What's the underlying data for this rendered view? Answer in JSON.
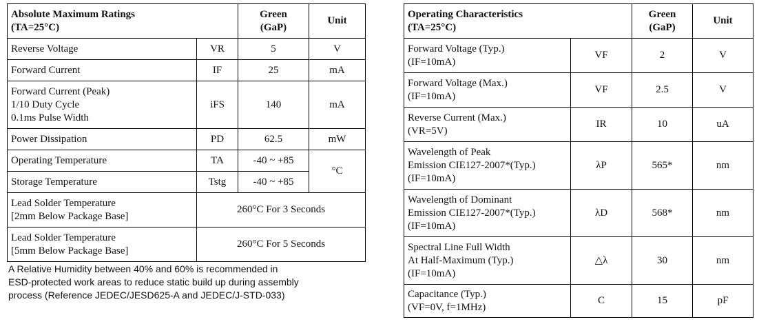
{
  "left_table": {
    "header": {
      "parameter": [
        "Absolute Maximum Ratings",
        "(TA=25°C)"
      ],
      "green": [
        "Green",
        "(GaP)"
      ],
      "unit": "Unit"
    },
    "rows": [
      {
        "parameter": [
          "Reverse Voltage"
        ],
        "symbol": "VR",
        "green": "5",
        "unit": "V"
      },
      {
        "parameter": [
          "Forward Current"
        ],
        "symbol": "IF",
        "green": "25",
        "unit": "mA"
      },
      {
        "parameter": [
          "Forward Current (Peak)",
          "1/10 Duty Cycle",
          "0.1ms Pulse Width"
        ],
        "symbol": "iFS",
        "green": "140",
        "unit": "mA"
      },
      {
        "parameter": [
          "Power Dissipation"
        ],
        "symbol": "PD",
        "green": "62.5",
        "unit": "mW"
      },
      {
        "parameter": [
          "Operating Temperature"
        ],
        "symbol": "TA",
        "green": "-40 ~ +85",
        "unit": "°C"
      },
      {
        "parameter": [
          "Storage Temperature"
        ],
        "symbol": "Tstg",
        "green": "-40 ~ +85"
      },
      {
        "parameter": [
          "Lead Solder Temperature",
          "[2mm Below Package Base]"
        ],
        "value": "260°C For 3 Seconds"
      },
      {
        "parameter": [
          "Lead Solder Temperature",
          "[5mm Below Package Base]"
        ],
        "value": "260°C For 5 Seconds"
      }
    ],
    "note": [
      "A Relative Humidity between 40% and 60% is recommended in",
      "ESD-protected work areas to reduce static build up during assembly",
      "process (Reference JEDEC/JESD625-A and JEDEC/J-STD-033)"
    ]
  },
  "right_table": {
    "header": {
      "parameter": [
        "Operating Characteristics",
        "(TA=25°C)"
      ],
      "green": [
        "Green",
        "(GaP)"
      ],
      "unit": "Unit"
    },
    "rows": [
      {
        "parameter": [
          "Forward Voltage (Typ.)",
          "(IF=10mA)"
        ],
        "symbol": "VF",
        "green": "2",
        "unit": "V"
      },
      {
        "parameter": [
          "Forward Voltage (Max.)",
          "(IF=10mA)"
        ],
        "symbol": "VF",
        "green": "2.5",
        "unit": "V"
      },
      {
        "parameter": [
          "Reverse Current (Max.)",
          "(VR=5V)"
        ],
        "symbol": "IR",
        "green": "10",
        "unit": "uA"
      },
      {
        "parameter": [
          "Wavelength of Peak",
          "Emission CIE127-2007*(Typ.)",
          "(IF=10mA)"
        ],
        "symbol": "λP",
        "green": "565*",
        "unit": "nm"
      },
      {
        "parameter": [
          "Wavelength of Dominant",
          "Emission CIE127-2007*(Typ.)",
          "(IF=10mA)"
        ],
        "symbol": "λD",
        "green": "568*",
        "unit": "nm"
      },
      {
        "parameter": [
          "Spectral Line Full Width",
          "At Half-Maximum (Typ.)",
          "(IF=10mA)"
        ],
        "symbol": "△λ",
        "green": "30",
        "unit": "nm"
      },
      {
        "parameter": [
          "Capacitance (Typ.)",
          "(VF=0V, f=1MHz)"
        ],
        "symbol": "C",
        "green": "15",
        "unit": "pF"
      }
    ]
  }
}
